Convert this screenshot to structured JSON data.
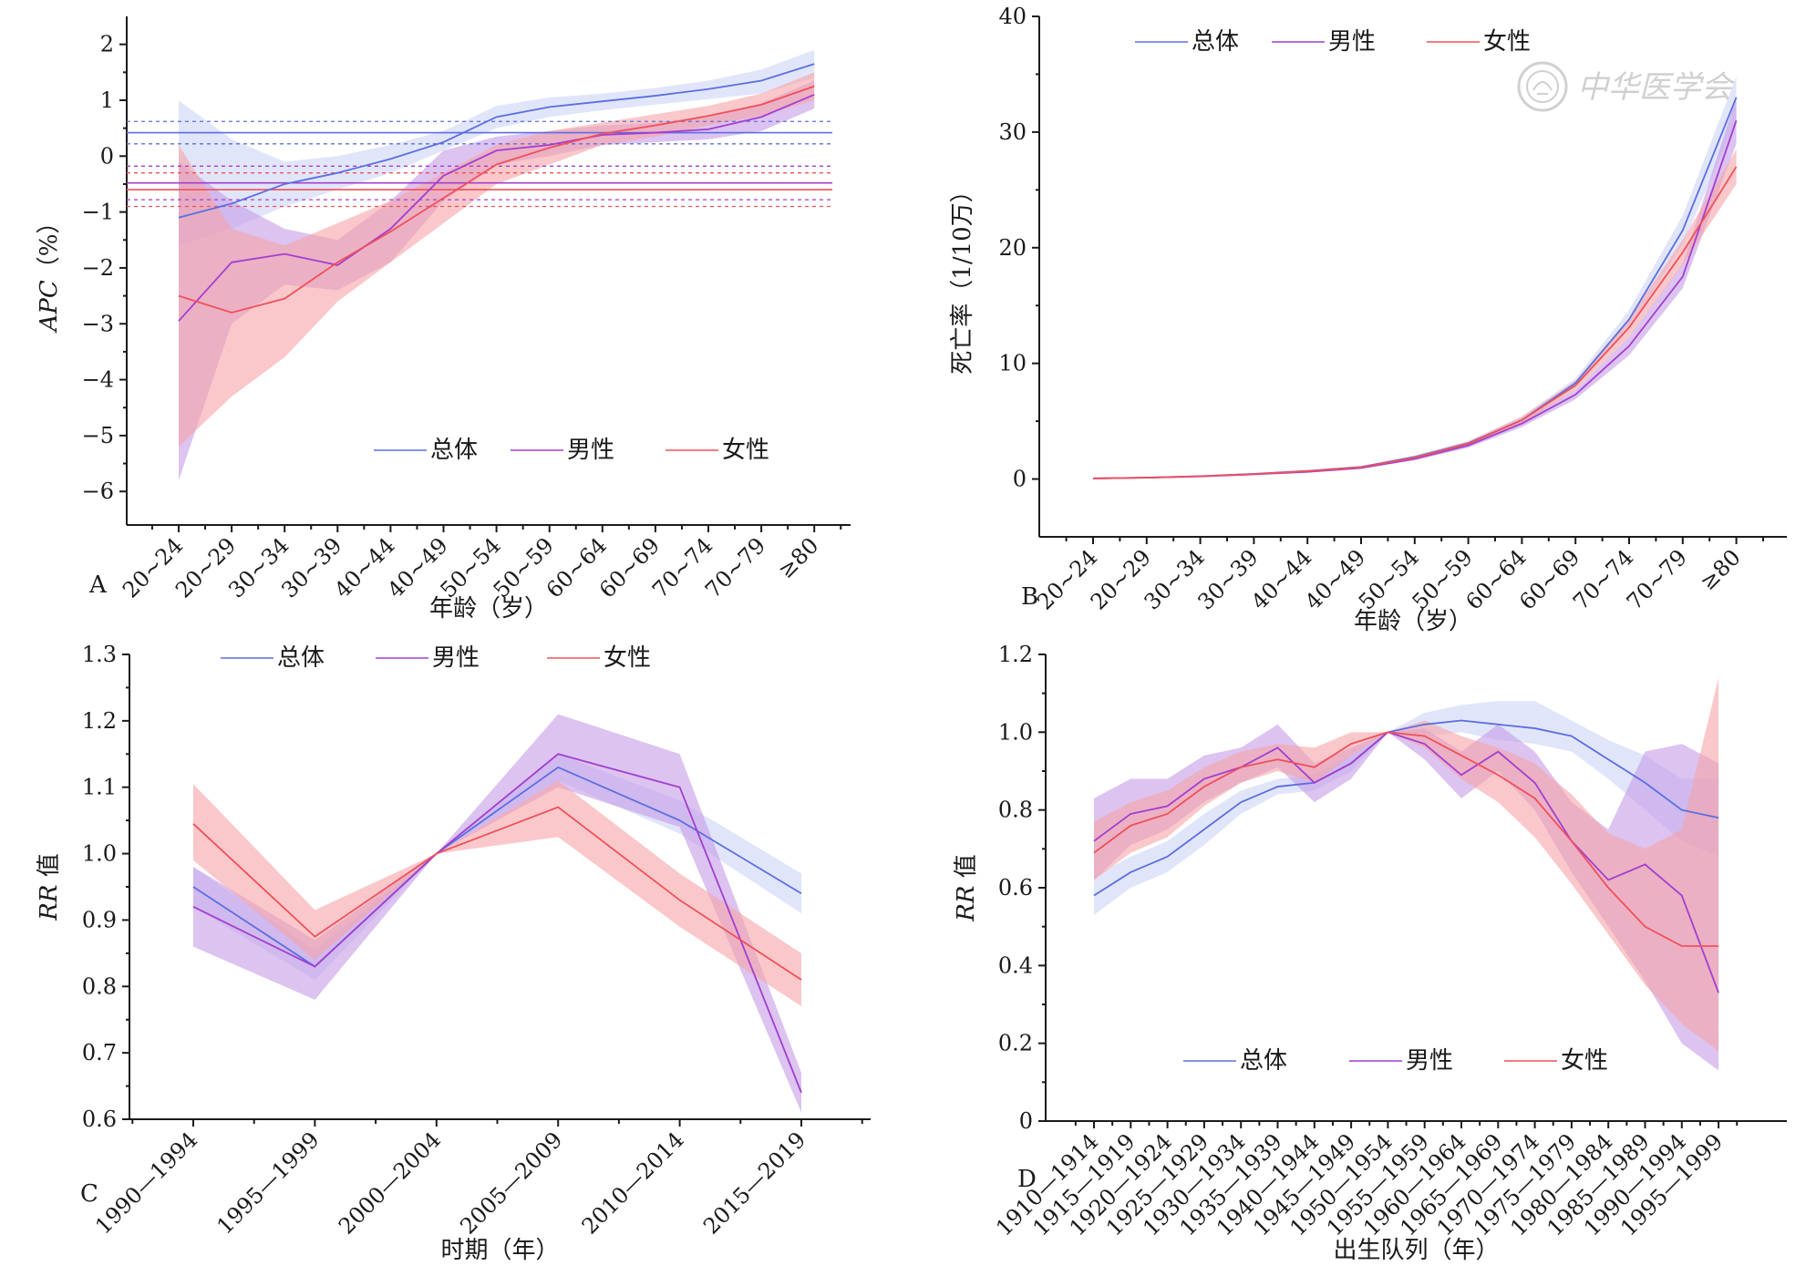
{
  "colors": {
    "overall": "#5b6ee1",
    "male": "#a23ed0",
    "female": "#f0505a",
    "overall_band": "#c9cff6",
    "male_band": "#c49be6",
    "female_band": "#f7a3a6"
  },
  "watermark": {
    "text": "中华医学会",
    "icon": "society-seal-icon"
  },
  "chart_data": [
    {
      "id": "A",
      "type": "line",
      "panel_label": "A",
      "xlabel": "年龄（岁）",
      "ylabel": "APC（%）",
      "ylabel_italic_part": "APC",
      "ylabel_rest": "（%）",
      "categories": [
        "20~24",
        "20~29",
        "30~34",
        "30~39",
        "40~44",
        "40~49",
        "50~54",
        "50~59",
        "60~64",
        "60~69",
        "70~74",
        "70~79",
        "≥80"
      ],
      "ylim": [
        -6.6,
        2.5
      ],
      "yticks": [
        2,
        1,
        0,
        -1,
        -2,
        -3,
        -4,
        -5,
        -6
      ],
      "ytick_labels": [
        "2",
        "1",
        "0",
        "−1",
        "−2",
        "−3",
        "−4",
        "−5",
        "−6"
      ],
      "grid": false,
      "legend": {
        "position": "bottom-center",
        "entries": [
          "总体",
          "男性",
          "女性"
        ]
      },
      "series": [
        {
          "name": "总体",
          "color_key": "overall",
          "values": [
            -1.1,
            -0.85,
            -0.5,
            -0.3,
            -0.05,
            0.25,
            0.7,
            0.88,
            0.98,
            1.08,
            1.2,
            1.35,
            1.65
          ],
          "lower": [
            -1.6,
            -1.3,
            -0.9,
            -0.6,
            -0.3,
            0.1,
            0.5,
            0.7,
            0.82,
            0.92,
            1.02,
            1.12,
            1.4
          ],
          "upper": [
            1.0,
            0.3,
            -0.1,
            0.0,
            0.2,
            0.45,
            0.9,
            1.05,
            1.12,
            1.22,
            1.35,
            1.55,
            1.9
          ],
          "net_drift": 0.42,
          "net_drift_ci": [
            0.22,
            0.62
          ]
        },
        {
          "name": "男性",
          "color_key": "male",
          "values": [
            -2.95,
            -1.9,
            -1.75,
            -1.95,
            -1.3,
            -0.35,
            0.1,
            0.2,
            0.38,
            0.42,
            0.48,
            0.7,
            1.1
          ],
          "lower": [
            -5.8,
            -3.0,
            -2.3,
            -2.4,
            -1.9,
            -0.8,
            -0.15,
            0.0,
            0.2,
            0.25,
            0.3,
            0.45,
            0.85
          ],
          "upper": [
            -0.1,
            -0.8,
            -1.3,
            -1.5,
            -0.8,
            0.1,
            0.35,
            0.45,
            0.55,
            0.6,
            0.7,
            0.95,
            1.35
          ],
          "net_drift": -0.48,
          "net_drift_ci": [
            -0.78,
            -0.18
          ]
        },
        {
          "name": "女性",
          "color_key": "female",
          "values": [
            -2.5,
            -2.8,
            -2.55,
            -1.9,
            -1.35,
            -0.75,
            -0.15,
            0.15,
            0.4,
            0.55,
            0.72,
            0.92,
            1.25
          ],
          "lower": [
            -5.2,
            -4.3,
            -3.6,
            -2.6,
            -1.9,
            -1.2,
            -0.5,
            -0.15,
            0.2,
            0.35,
            0.55,
            0.72,
            1.0
          ],
          "upper": [
            0.2,
            -1.3,
            -1.6,
            -1.2,
            -0.8,
            -0.3,
            0.2,
            0.45,
            0.6,
            0.75,
            0.9,
            1.12,
            1.5
          ],
          "net_drift": -0.6,
          "net_drift_ci": [
            -0.9,
            -0.3
          ]
        }
      ]
    },
    {
      "id": "B",
      "type": "line",
      "panel_label": "B",
      "xlabel": "年龄（岁）",
      "ylabel": "死亡率（1/10万）",
      "categories": [
        "20~24",
        "20~29",
        "30~34",
        "30~39",
        "40~44",
        "40~49",
        "50~54",
        "50~59",
        "60~64",
        "60~69",
        "70~74",
        "70~79",
        "≥80"
      ],
      "ylim": [
        -5,
        40
      ],
      "yticks": [
        0,
        10,
        20,
        30,
        40
      ],
      "ytick_labels": [
        "0",
        "10",
        "20",
        "30",
        "40"
      ],
      "grid": false,
      "legend": {
        "position": "top-left",
        "entries": [
          "总体",
          "男性",
          "女性"
        ]
      },
      "series": [
        {
          "name": "总体",
          "color_key": "overall",
          "values": [
            0.05,
            0.12,
            0.25,
            0.45,
            0.7,
            1.05,
            1.9,
            3.1,
            5.1,
            8.3,
            13.8,
            21.5,
            33.0
          ],
          "lower": [
            0.03,
            0.1,
            0.22,
            0.4,
            0.65,
            0.98,
            1.75,
            2.9,
            4.8,
            7.9,
            13.0,
            20.3,
            31.0
          ],
          "upper": [
            0.07,
            0.14,
            0.28,
            0.5,
            0.76,
            1.12,
            2.05,
            3.3,
            5.4,
            8.7,
            14.6,
            22.8,
            34.8
          ]
        },
        {
          "name": "男性",
          "color_key": "male",
          "values": [
            0.05,
            0.11,
            0.22,
            0.4,
            0.62,
            0.95,
            1.75,
            2.9,
            4.8,
            7.3,
            11.5,
            17.5,
            31.0
          ],
          "lower": [
            0.03,
            0.09,
            0.19,
            0.35,
            0.57,
            0.88,
            1.6,
            2.7,
            4.5,
            6.9,
            10.7,
            16.5,
            29.0
          ],
          "upper": [
            0.07,
            0.13,
            0.25,
            0.45,
            0.68,
            1.02,
            1.9,
            3.1,
            5.1,
            7.7,
            12.3,
            18.6,
            33.0
          ]
        },
        {
          "name": "女性",
          "color_key": "female",
          "values": [
            0.05,
            0.12,
            0.24,
            0.43,
            0.68,
            1.02,
            1.85,
            3.05,
            5.1,
            8.1,
            13.1,
            19.6,
            27.0
          ],
          "lower": [
            0.03,
            0.1,
            0.21,
            0.38,
            0.62,
            0.95,
            1.7,
            2.85,
            4.8,
            7.7,
            12.3,
            18.5,
            25.5
          ],
          "upper": [
            0.07,
            0.14,
            0.27,
            0.48,
            0.74,
            1.09,
            2.0,
            3.25,
            5.4,
            8.5,
            13.9,
            20.7,
            28.5
          ]
        }
      ]
    },
    {
      "id": "C",
      "type": "line",
      "panel_label": "C",
      "xlabel": "时期（年）",
      "ylabel": "RR值",
      "ylabel_italic_part": "RR",
      "ylabel_rest": " 值",
      "categories": [
        "1990—1994",
        "1995—1999",
        "2000—2004",
        "2005—2009",
        "2010—2014",
        "2015—2019"
      ],
      "ylim": [
        0.6,
        1.3
      ],
      "yticks": [
        1.3,
        1.2,
        1.1,
        1.0,
        0.9,
        0.8,
        0.7,
        0.6
      ],
      "ytick_labels": [
        "1.3",
        "1.2",
        "1.1",
        "1.0",
        "0.9",
        "0.8",
        "0.7",
        "0.6"
      ],
      "grid": false,
      "legend": {
        "position": "top-center",
        "entries": [
          "总体",
          "男性",
          "女性"
        ]
      },
      "series": [
        {
          "name": "总体",
          "color_key": "overall",
          "values": [
            0.95,
            0.83,
            1.0,
            1.13,
            1.05,
            0.94
          ],
          "lower": [
            0.92,
            0.81,
            1.0,
            1.11,
            1.03,
            0.91
          ],
          "upper": [
            0.98,
            0.855,
            1.0,
            1.15,
            1.08,
            0.97
          ]
        },
        {
          "name": "男性",
          "color_key": "male",
          "values": [
            0.92,
            0.83,
            1.0,
            1.15,
            1.1,
            0.64
          ],
          "lower": [
            0.86,
            0.78,
            1.0,
            1.1,
            1.04,
            0.61
          ],
          "upper": [
            0.98,
            0.87,
            1.0,
            1.21,
            1.15,
            0.67
          ]
        },
        {
          "name": "女性",
          "color_key": "female",
          "values": [
            1.045,
            0.875,
            1.0,
            1.07,
            0.93,
            0.81
          ],
          "lower": [
            0.99,
            0.84,
            1.0,
            1.025,
            0.89,
            0.77
          ],
          "upper": [
            1.105,
            0.915,
            1.0,
            1.11,
            0.97,
            0.85
          ]
        }
      ]
    },
    {
      "id": "D",
      "type": "line",
      "panel_label": "D",
      "xlabel": "出生队列（年）",
      "ylabel": "RR值",
      "ylabel_italic_part": "RR",
      "ylabel_rest": " 值",
      "categories": [
        "1910—1914",
        "1915—1919",
        "1920—1924",
        "1925—1929",
        "1930—1934",
        "1935—1939",
        "1940—1944",
        "1945—1949",
        "1950—1954",
        "1955—1959",
        "1960—1964",
        "1965—1969",
        "1970—1974",
        "1975—1979",
        "1980—1984",
        "1985—1989",
        "1990—1994",
        "1995—1999"
      ],
      "ylim": [
        0,
        1.2
      ],
      "yticks": [
        1.2,
        1.0,
        0.8,
        0.6,
        0.4,
        0.2,
        0
      ],
      "ytick_labels": [
        "1.2",
        "1.0",
        "0.8",
        "0.6",
        "0.4",
        "0.2",
        "0"
      ],
      "grid": false,
      "legend": {
        "position": "bottom-center",
        "entries": [
          "总体",
          "男性",
          "女性"
        ]
      },
      "series": [
        {
          "name": "总体",
          "color_key": "overall",
          "values": [
            0.58,
            0.64,
            0.68,
            0.75,
            0.82,
            0.86,
            0.87,
            0.92,
            1.0,
            1.02,
            1.03,
            1.02,
            1.01,
            0.99,
            0.93,
            0.87,
            0.8,
            0.78
          ],
          "lower": [
            0.53,
            0.6,
            0.64,
            0.71,
            0.79,
            0.84,
            0.85,
            0.9,
            1.0,
            0.99,
            1.0,
            0.98,
            0.97,
            0.95,
            0.88,
            0.8,
            0.72,
            0.68
          ],
          "upper": [
            0.63,
            0.68,
            0.72,
            0.79,
            0.85,
            0.88,
            0.89,
            0.94,
            1.0,
            1.05,
            1.07,
            1.08,
            1.08,
            1.03,
            0.98,
            0.94,
            0.88,
            0.88
          ]
        },
        {
          "name": "男性",
          "color_key": "male",
          "values": [
            0.72,
            0.79,
            0.81,
            0.88,
            0.91,
            0.96,
            0.87,
            0.92,
            1.0,
            0.97,
            0.89,
            0.95,
            0.87,
            0.72,
            0.62,
            0.66,
            0.58,
            0.33
          ],
          "lower": [
            0.62,
            0.71,
            0.75,
            0.82,
            0.87,
            0.91,
            0.82,
            0.88,
            1.0,
            0.93,
            0.83,
            0.9,
            0.8,
            0.64,
            0.5,
            0.36,
            0.2,
            0.13
          ],
          "upper": [
            0.83,
            0.88,
            0.88,
            0.94,
            0.96,
            1.02,
            0.92,
            0.96,
            1.0,
            1.01,
            0.95,
            1.02,
            0.95,
            0.82,
            0.75,
            0.95,
            0.97,
            0.92
          ]
        },
        {
          "name": "女性",
          "color_key": "female",
          "values": [
            0.69,
            0.76,
            0.79,
            0.86,
            0.91,
            0.93,
            0.91,
            0.97,
            1.0,
            0.99,
            0.94,
            0.89,
            0.83,
            0.72,
            0.6,
            0.5,
            0.45,
            0.45
          ],
          "lower": [
            0.62,
            0.69,
            0.73,
            0.81,
            0.87,
            0.9,
            0.87,
            0.94,
            1.0,
            0.96,
            0.88,
            0.82,
            0.73,
            0.61,
            0.48,
            0.35,
            0.25,
            0.18
          ],
          "upper": [
            0.77,
            0.82,
            0.85,
            0.91,
            0.95,
            0.97,
            0.96,
            1.0,
            1.0,
            1.03,
            0.99,
            0.96,
            0.92,
            0.84,
            0.74,
            0.7,
            0.75,
            1.14
          ]
        }
      ]
    }
  ]
}
